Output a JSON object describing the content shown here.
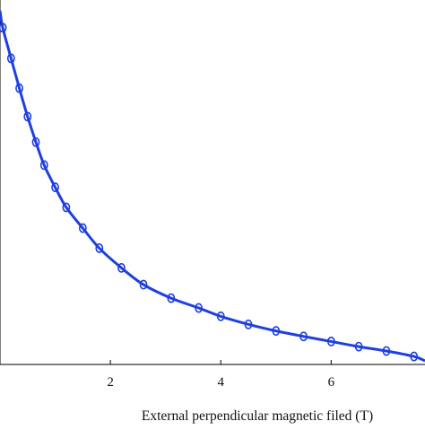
{
  "chart_data": {
    "type": "line",
    "title": "",
    "xlabel": "External perpendicular magnetic filed (T)",
    "ylabel": "",
    "xlim": [
      0,
      7.7
    ],
    "ylim": [
      0,
      1
    ],
    "grid": false,
    "legend": "none",
    "x_ticks": [
      2,
      4,
      6
    ],
    "x_tick_labels": [
      "2",
      "4",
      "6"
    ],
    "series": [
      {
        "color": "#1f3fe0",
        "marker": "circle-open",
        "x": [
          0.05,
          0.2,
          0.35,
          0.5,
          0.65,
          0.8,
          1.0,
          1.2,
          1.5,
          1.8,
          2.2,
          2.6,
          3.1,
          3.6,
          4.0,
          4.5,
          5.0,
          5.5,
          6.0,
          6.5,
          7.0,
          7.5
        ],
        "y": [
          0.924,
          0.84,
          0.758,
          0.68,
          0.61,
          0.547,
          0.486,
          0.431,
          0.374,
          0.319,
          0.265,
          0.219,
          0.182,
          0.155,
          0.132,
          0.11,
          0.092,
          0.077,
          0.063,
          0.049,
          0.037,
          0.022
        ]
      }
    ]
  }
}
